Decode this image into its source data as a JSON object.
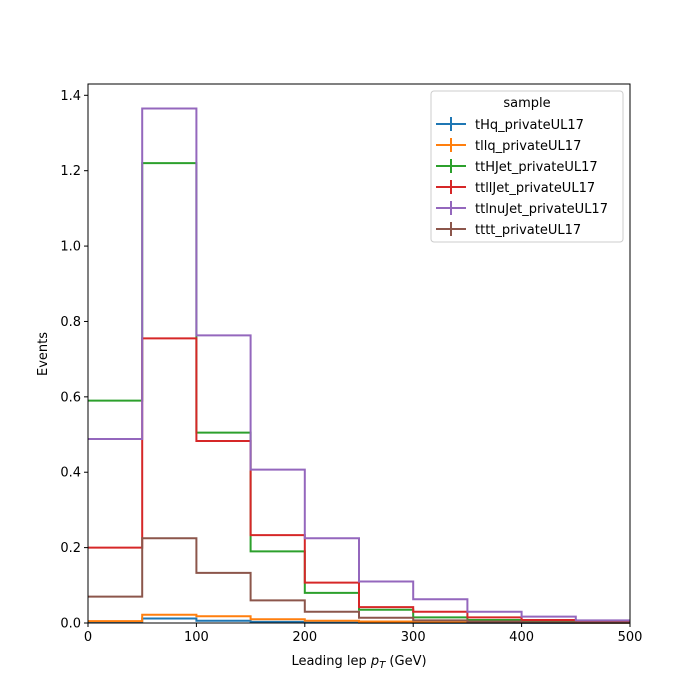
{
  "chart_data": {
    "type": "step-histogram",
    "bin_edges": [
      0,
      50,
      100,
      150,
      200,
      250,
      300,
      350,
      400,
      450,
      500
    ],
    "xlim": [
      0,
      500
    ],
    "ylim": [
      0,
      1.43
    ],
    "xticks": [
      0,
      100,
      200,
      300,
      400,
      500
    ],
    "yticks": [
      0.0,
      0.2,
      0.4,
      0.6,
      0.8,
      1.0,
      1.2,
      1.4
    ],
    "xticklabels": [
      "0",
      "100",
      "200",
      "300",
      "400",
      "500"
    ],
    "yticklabels": [
      "0.0",
      "0.2",
      "0.4",
      "0.6",
      "0.8",
      "1.0",
      "1.2",
      "1.4"
    ],
    "xlabel_main": "Leading lep ",
    "xlabel_var": "p",
    "xlabel_sub": "T",
    "xlabel_unit": " (GeV)",
    "ylabel": "Events",
    "grid": false,
    "legend": {
      "title": "sample",
      "position": "top-right"
    },
    "series": [
      {
        "name": "tHq_privateUL17",
        "color": "#1f77b4",
        "values": [
          0.002,
          0.012,
          0.006,
          0.003,
          0.001,
          0.0005,
          0.0003,
          0.0002,
          0.0001,
          0.0001
        ]
      },
      {
        "name": "tllq_privateUL17",
        "color": "#ff7f0e",
        "values": [
          0.005,
          0.022,
          0.018,
          0.01,
          0.006,
          0.004,
          0.002,
          0.001,
          0.001,
          0.0005
        ]
      },
      {
        "name": "ttHJet_privateUL17",
        "color": "#2ca02c",
        "values": [
          0.59,
          1.22,
          0.505,
          0.19,
          0.08,
          0.035,
          0.015,
          0.008,
          0.004,
          0.002
        ]
      },
      {
        "name": "ttllJet_privateUL17",
        "color": "#d62728",
        "values": [
          0.2,
          0.755,
          0.483,
          0.233,
          0.107,
          0.042,
          0.03,
          0.015,
          0.008,
          0.004
        ]
      },
      {
        "name": "ttlnuJet_privateUL17",
        "color": "#9467bd",
        "values": [
          0.488,
          1.365,
          0.763,
          0.407,
          0.225,
          0.11,
          0.063,
          0.03,
          0.017,
          0.007
        ]
      },
      {
        "name": "tttt_privateUL17",
        "color": "#8c564b",
        "values": [
          0.07,
          0.225,
          0.133,
          0.06,
          0.03,
          0.014,
          0.007,
          0.004,
          0.002,
          0.001
        ]
      }
    ]
  }
}
